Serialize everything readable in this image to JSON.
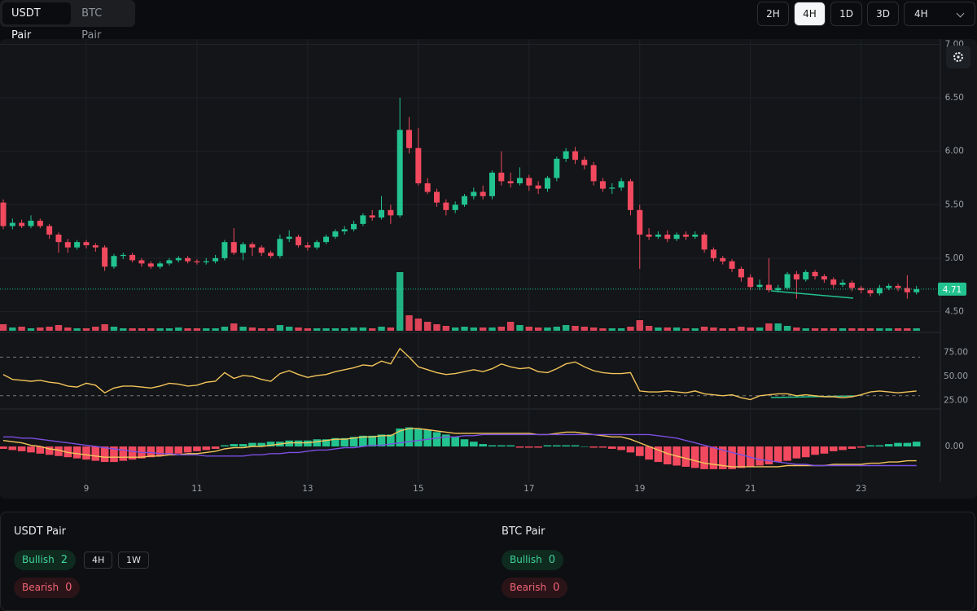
{
  "tabs": [
    "USDT Pair",
    "BTC Pair"
  ],
  "timeframes": [
    "2H",
    "4H",
    "1D",
    "3D"
  ],
  "timeframe_select": "4H",
  "chart_data": {
    "type": "candlestick",
    "up_color": "#22c38e",
    "down_color": "#f2495f",
    "categories": [
      null,
      null,
      null,
      null,
      null,
      null,
      null,
      null,
      null,
      "9",
      null,
      null,
      null,
      null,
      null,
      null,
      null,
      null,
      null,
      null,
      null,
      "11",
      null,
      null,
      null,
      null,
      null,
      null,
      null,
      null,
      null,
      null,
      null,
      "13",
      null,
      null,
      null,
      null,
      null,
      null,
      null,
      null,
      null,
      null,
      null,
      "15",
      null,
      null,
      null,
      null,
      null,
      null,
      null,
      null,
      null,
      null,
      null,
      "17",
      null,
      null,
      null,
      null,
      null,
      null,
      null,
      null,
      null,
      null,
      null,
      "19",
      null,
      null,
      null,
      null,
      null,
      null,
      null,
      null,
      null,
      null,
      null,
      "21",
      null,
      null,
      null,
      null,
      null,
      null,
      null,
      null,
      null,
      null,
      null,
      "23",
      null,
      null,
      null,
      null,
      null,
      null
    ],
    "open": [
      5.52,
      5.3,
      5.33,
      5.3,
      5.35,
      5.3,
      5.22,
      5.15,
      5.1,
      5.15,
      5.12,
      5.1,
      4.92,
      5.02,
      5.03,
      4.98,
      4.95,
      4.92,
      4.95,
      4.98,
      5.0,
      4.97,
      4.96,
      4.97,
      5.0,
      5.15,
      5.05,
      5.13,
      5.1,
      5.05,
      5.02,
      5.18,
      5.2,
      5.12,
      5.1,
      5.15,
      5.2,
      5.25,
      5.27,
      5.32,
      5.4,
      5.38,
      5.45,
      5.4,
      6.2,
      6.03,
      5.7,
      5.62,
      5.52,
      5.45,
      5.5,
      5.58,
      5.62,
      5.58,
      5.8,
      5.72,
      5.7,
      5.75,
      5.68,
      5.65,
      5.75,
      5.93,
      6.0,
      5.92,
      5.87,
      5.72,
      5.65,
      5.66,
      5.72,
      5.45,
      5.22,
      5.2,
      5.22,
      5.18,
      5.22,
      5.2,
      5.22,
      5.08,
      5.0,
      4.97,
      4.9,
      4.82,
      4.73,
      4.75,
      4.7,
      4.72,
      4.85,
      4.8,
      4.87,
      4.83,
      4.8,
      4.75,
      4.77,
      4.72,
      4.7,
      4.67,
      4.72,
      4.74,
      4.72,
      4.68
    ],
    "high": [
      5.55,
      5.37,
      5.36,
      5.4,
      5.37,
      5.32,
      5.24,
      5.18,
      5.17,
      5.17,
      5.14,
      5.12,
      5.04,
      5.05,
      5.05,
      5.0,
      4.97,
      4.97,
      5.0,
      5.02,
      5.02,
      4.99,
      5.0,
      5.03,
      5.17,
      5.28,
      5.15,
      5.15,
      5.12,
      5.07,
      5.22,
      5.26,
      5.22,
      5.15,
      5.17,
      5.22,
      5.27,
      5.3,
      5.35,
      5.42,
      5.45,
      5.58,
      5.5,
      6.5,
      6.32,
      6.22,
      5.75,
      5.65,
      5.55,
      5.53,
      5.6,
      5.66,
      5.68,
      5.82,
      6.0,
      5.8,
      5.85,
      5.78,
      5.72,
      5.77,
      5.95,
      6.03,
      6.04,
      5.95,
      5.9,
      5.75,
      5.7,
      5.75,
      5.74,
      5.5,
      5.28,
      5.25,
      5.26,
      5.24,
      5.25,
      5.25,
      5.24,
      5.1,
      5.02,
      4.99,
      4.92,
      4.85,
      4.8,
      5.0,
      4.75,
      4.87,
      4.88,
      4.89,
      4.89,
      4.85,
      4.82,
      4.8,
      4.79,
      4.74,
      4.72,
      4.75,
      4.76,
      4.76,
      4.84,
      4.74
    ],
    "low": [
      5.27,
      5.27,
      5.28,
      5.28,
      5.28,
      5.18,
      5.05,
      5.05,
      5.08,
      5.09,
      5.06,
      4.88,
      4.9,
      4.99,
      4.96,
      4.92,
      4.9,
      4.9,
      4.93,
      4.96,
      4.95,
      4.94,
      4.94,
      4.95,
      4.98,
      5.03,
      4.98,
      5.02,
      5.02,
      5.0,
      5.0,
      5.15,
      5.1,
      5.07,
      5.08,
      5.13,
      5.18,
      5.22,
      5.25,
      5.3,
      5.35,
      5.36,
      5.32,
      5.38,
      5.98,
      5.68,
      5.6,
      5.48,
      5.4,
      5.42,
      5.48,
      5.55,
      5.55,
      5.55,
      5.68,
      5.66,
      5.68,
      5.63,
      5.6,
      5.62,
      5.72,
      5.9,
      5.88,
      5.83,
      5.68,
      5.62,
      5.6,
      5.63,
      5.4,
      4.9,
      5.17,
      5.18,
      5.15,
      5.16,
      5.17,
      5.18,
      5.05,
      4.97,
      4.94,
      4.87,
      4.78,
      4.7,
      4.7,
      4.68,
      4.68,
      4.7,
      4.62,
      4.78,
      4.8,
      4.77,
      4.72,
      4.73,
      4.69,
      4.67,
      4.64,
      4.65,
      4.7,
      4.69,
      4.62,
      4.66
    ],
    "close": [
      5.3,
      5.33,
      5.3,
      5.35,
      5.3,
      5.22,
      5.15,
      5.1,
      5.15,
      5.12,
      5.1,
      4.92,
      5.02,
      5.03,
      4.98,
      4.95,
      4.92,
      4.95,
      4.98,
      5.0,
      4.97,
      4.96,
      4.97,
      5.0,
      5.15,
      5.05,
      5.13,
      5.1,
      5.05,
      5.02,
      5.18,
      5.2,
      5.12,
      5.1,
      5.15,
      5.2,
      5.25,
      5.27,
      5.32,
      5.4,
      5.38,
      5.45,
      5.4,
      6.2,
      6.03,
      5.7,
      5.62,
      5.52,
      5.45,
      5.5,
      5.58,
      5.62,
      5.58,
      5.8,
      5.72,
      5.7,
      5.75,
      5.68,
      5.65,
      5.75,
      5.93,
      6.0,
      5.92,
      5.87,
      5.72,
      5.65,
      5.66,
      5.72,
      5.45,
      5.22,
      5.2,
      5.22,
      5.18,
      5.22,
      5.2,
      5.22,
      5.08,
      5.0,
      4.97,
      4.9,
      4.82,
      4.73,
      4.75,
      4.7,
      4.72,
      4.85,
      4.8,
      4.87,
      4.83,
      4.8,
      4.75,
      4.77,
      4.72,
      4.7,
      4.67,
      4.72,
      4.74,
      4.72,
      4.68,
      4.71
    ],
    "last_price": 4.71,
    "ylim": [
      4.32,
      7.05
    ],
    "yticks": [
      {
        "value": 4.5,
        "label": "4.50"
      },
      {
        "value": 5,
        "label": "5.00"
      },
      {
        "value": 5.5,
        "label": "5.50"
      },
      {
        "value": 6,
        "label": "6.00"
      },
      {
        "value": 6.5,
        "label": "6.50"
      },
      {
        "value": 7,
        "label": "7.00"
      }
    ],
    "grid": true,
    "volume": [
      8,
      4,
      5,
      3,
      4,
      5,
      7,
      4,
      3,
      3,
      5,
      8,
      5,
      3,
      3,
      3,
      3,
      3,
      3,
      4,
      3,
      3,
      3,
      3,
      5,
      9,
      5,
      4,
      3,
      3,
      7,
      5,
      4,
      3,
      3,
      3,
      3,
      3,
      4,
      4,
      3,
      5,
      4,
      72,
      19,
      15,
      11,
      8,
      6,
      4,
      5,
      4,
      4,
      4,
      5,
      11,
      7,
      5,
      4,
      4,
      5,
      7,
      6,
      5,
      4,
      3,
      3,
      3,
      5,
      13,
      6,
      4,
      4,
      4,
      3,
      3,
      5,
      4,
      3,
      3,
      5,
      4,
      4,
      9,
      9,
      6,
      4,
      3,
      3,
      3,
      3,
      3,
      3,
      3,
      3,
      3,
      3,
      3,
      3,
      3
    ],
    "rsi": {
      "color": "#f3c45a",
      "values": [
        52,
        47,
        46,
        45,
        46,
        44,
        43,
        40,
        39,
        43,
        41,
        33,
        38,
        40,
        40,
        39,
        38,
        40,
        43,
        42,
        40,
        41,
        44,
        45,
        54,
        48,
        51,
        50,
        47,
        45,
        53,
        56,
        52,
        49,
        51,
        52,
        55,
        57,
        59,
        62,
        61,
        66,
        63,
        79,
        70,
        60,
        57,
        54,
        52,
        53,
        55,
        57,
        55,
        58,
        63,
        60,
        58,
        59,
        55,
        54,
        58,
        63,
        65,
        60,
        56,
        54,
        53,
        53,
        54,
        35,
        34,
        34,
        35,
        34,
        33,
        35,
        32,
        31,
        30,
        31,
        28,
        26,
        30,
        31,
        32,
        32,
        30,
        31,
        30,
        29,
        29,
        28,
        29,
        31,
        34,
        35,
        34,
        33,
        34,
        35
      ],
      "ylim": [
        18,
        94
      ],
      "yticks": [
        {
          "value": 25,
          "label": "25.00"
        },
        {
          "value": 50,
          "label": "50.00"
        },
        {
          "value": 75,
          "label": "75.00"
        }
      ],
      "levels": [
        30,
        70
      ]
    },
    "macd": {
      "macd_color": "#f3c45a",
      "signal_color": "#7b4fe0",
      "histogram": [
        -0.02,
        -0.03,
        -0.04,
        -0.05,
        -0.06,
        -0.07,
        -0.08,
        -0.09,
        -0.1,
        -0.11,
        -0.12,
        -0.13,
        -0.13,
        -0.12,
        -0.11,
        -0.1,
        -0.09,
        -0.08,
        -0.07,
        -0.06,
        -0.05,
        -0.04,
        -0.03,
        -0.02,
        0.01,
        0.02,
        0.02,
        0.03,
        0.03,
        0.04,
        0.04,
        0.05,
        0.05,
        0.05,
        0.06,
        0.06,
        0.07,
        0.07,
        0.08,
        0.09,
        0.09,
        0.1,
        0.1,
        0.15,
        0.16,
        0.15,
        0.14,
        0.12,
        0.1,
        0.08,
        0.06,
        0.04,
        0.02,
        0.01,
        0.01,
        0.01,
        -0.01,
        -0.01,
        -0.01,
        0.01,
        0.01,
        0.01,
        0.01,
        0.0,
        -0.01,
        -0.01,
        -0.02,
        -0.03,
        -0.05,
        -0.08,
        -0.11,
        -0.13,
        -0.15,
        -0.16,
        -0.17,
        -0.18,
        -0.19,
        -0.19,
        -0.19,
        -0.19,
        -0.18,
        -0.17,
        -0.16,
        -0.15,
        -0.13,
        -0.12,
        -0.1,
        -0.09,
        -0.07,
        -0.06,
        -0.04,
        -0.03,
        -0.02,
        -0.01,
        0.01,
        0.01,
        0.02,
        0.03,
        0.03,
        0.04
      ],
      "macd": [
        0.05,
        0.04,
        0.03,
        0.01,
        0.0,
        -0.02,
        -0.03,
        -0.05,
        -0.06,
        -0.07,
        -0.08,
        -0.09,
        -0.09,
        -0.09,
        -0.09,
        -0.09,
        -0.08,
        -0.08,
        -0.07,
        -0.07,
        -0.06,
        -0.06,
        -0.05,
        -0.04,
        -0.02,
        -0.01,
        -0.01,
        0.0,
        0.0,
        0.01,
        0.02,
        0.03,
        0.03,
        0.03,
        0.04,
        0.05,
        0.06,
        0.06,
        0.07,
        0.08,
        0.08,
        0.09,
        0.09,
        0.13,
        0.15,
        0.15,
        0.14,
        0.13,
        0.12,
        0.11,
        0.11,
        0.11,
        0.11,
        0.11,
        0.11,
        0.11,
        0.11,
        0.11,
        0.1,
        0.1,
        0.11,
        0.12,
        0.12,
        0.11,
        0.1,
        0.09,
        0.08,
        0.08,
        0.06,
        0.03,
        0.0,
        -0.03,
        -0.06,
        -0.08,
        -0.1,
        -0.12,
        -0.14,
        -0.15,
        -0.16,
        -0.17,
        -0.17,
        -0.17,
        -0.17,
        -0.17,
        -0.17,
        -0.16,
        -0.16,
        -0.16,
        -0.16,
        -0.16,
        -0.15,
        -0.15,
        -0.15,
        -0.15,
        -0.14,
        -0.14,
        -0.13,
        -0.13,
        -0.12,
        -0.12
      ],
      "signal": [
        0.08,
        0.08,
        0.07,
        0.07,
        0.06,
        0.05,
        0.04,
        0.03,
        0.02,
        0.01,
        0.0,
        -0.01,
        -0.02,
        -0.03,
        -0.04,
        -0.05,
        -0.05,
        -0.06,
        -0.06,
        -0.07,
        -0.07,
        -0.07,
        -0.08,
        -0.08,
        -0.08,
        -0.08,
        -0.08,
        -0.07,
        -0.07,
        -0.06,
        -0.06,
        -0.05,
        -0.05,
        -0.04,
        -0.03,
        -0.03,
        -0.02,
        -0.01,
        -0.01,
        0.0,
        0.01,
        0.01,
        0.02,
        0.03,
        0.04,
        0.05,
        0.06,
        0.07,
        0.08,
        0.08,
        0.09,
        0.09,
        0.1,
        0.1,
        0.1,
        0.1,
        0.1,
        0.1,
        0.1,
        0.1,
        0.1,
        0.1,
        0.1,
        0.1,
        0.1,
        0.1,
        0.1,
        0.1,
        0.1,
        0.1,
        0.1,
        0.09,
        0.08,
        0.07,
        0.05,
        0.03,
        0.01,
        -0.01,
        -0.03,
        -0.05,
        -0.07,
        -0.09,
        -0.11,
        -0.12,
        -0.13,
        -0.14,
        -0.15,
        -0.15,
        -0.16,
        -0.16,
        -0.16,
        -0.16,
        -0.16,
        -0.16,
        -0.16,
        -0.16,
        -0.16,
        -0.16,
        -0.16,
        -0.16
      ],
      "ylim": [
        -0.3,
        0.28
      ],
      "yticks": [
        {
          "value": 0,
          "label": "0.00"
        }
      ]
    }
  },
  "summary": [
    {
      "title": "USDT Pair",
      "bullish": {
        "label": "Bullish",
        "count": 2
      },
      "bearish": {
        "label": "Bearish",
        "count": 0
      },
      "timeframes": [
        "4H",
        "1W"
      ]
    },
    {
      "title": "BTC Pair",
      "bullish": {
        "label": "Bullish",
        "count": 0
      },
      "bearish": {
        "label": "Bearish",
        "count": 0
      }
    }
  ]
}
